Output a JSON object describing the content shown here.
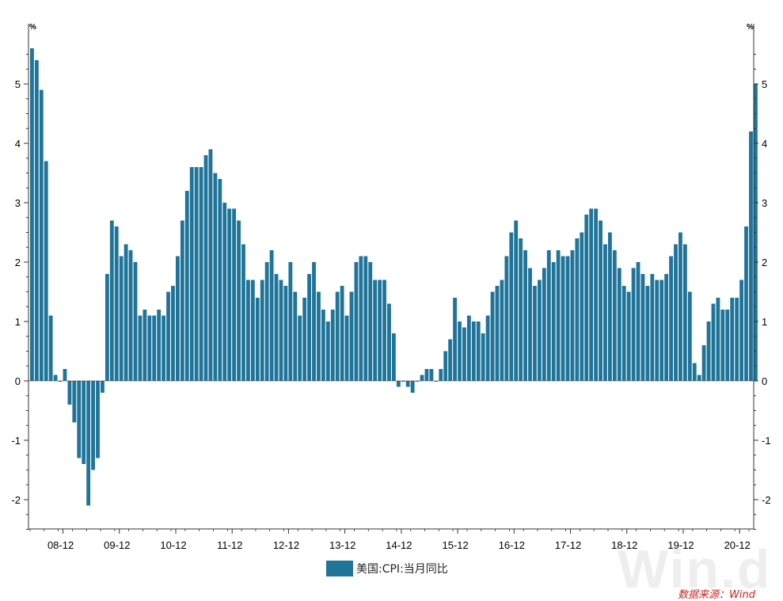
{
  "colors": {
    "bar": "#1f7499",
    "axis": "#333333"
  },
  "watermark": "Win.d",
  "source": "数据来源：Wind",
  "chart_data": {
    "type": "bar",
    "legend": "美国:CPI:当月同比",
    "unit_left": "%",
    "unit_right": "%",
    "ylim": [
      -2.5,
      5.75
    ],
    "yticks": [
      -2,
      -1,
      0,
      1,
      2,
      3,
      4,
      5
    ],
    "x_tick_labels": [
      "08-12",
      "09-12",
      "10-12",
      "11-12",
      "12-12",
      "13-12",
      "14-12",
      "15-12",
      "16-12",
      "17-12",
      "18-12",
      "19-12",
      "20-12"
    ],
    "start_month": "2008-06",
    "values": [
      5.6,
      5.4,
      4.9,
      3.7,
      1.1,
      0.1,
      0.0,
      0.2,
      -0.4,
      -0.7,
      -1.3,
      -1.4,
      -2.1,
      -1.5,
      -1.3,
      -0.2,
      1.8,
      2.7,
      2.6,
      2.1,
      2.3,
      2.2,
      2.0,
      1.1,
      1.2,
      1.1,
      1.1,
      1.2,
      1.1,
      1.5,
      1.6,
      2.1,
      2.7,
      3.2,
      3.6,
      3.6,
      3.6,
      3.8,
      3.9,
      3.5,
      3.4,
      3.0,
      2.9,
      2.9,
      2.7,
      2.3,
      1.7,
      1.7,
      1.4,
      1.7,
      2.0,
      2.2,
      1.8,
      1.7,
      1.6,
      2.0,
      1.5,
      1.1,
      1.4,
      1.8,
      2.0,
      1.5,
      1.2,
      1.0,
      1.2,
      1.5,
      1.6,
      1.1,
      1.5,
      2.0,
      2.1,
      2.1,
      2.0,
      1.7,
      1.7,
      1.7,
      1.3,
      0.8,
      -0.1,
      0.0,
      -0.1,
      -0.2,
      0.0,
      0.1,
      0.2,
      0.2,
      0.0,
      0.2,
      0.5,
      0.7,
      1.4,
      1.0,
      0.9,
      1.1,
      1.0,
      1.0,
      0.8,
      1.1,
      1.5,
      1.6,
      1.7,
      2.1,
      2.5,
      2.7,
      2.4,
      2.2,
      1.9,
      1.6,
      1.7,
      1.9,
      2.2,
      2.0,
      2.2,
      2.1,
      2.1,
      2.2,
      2.4,
      2.5,
      2.8,
      2.9,
      2.9,
      2.7,
      2.3,
      2.5,
      2.2,
      1.9,
      1.6,
      1.5,
      1.9,
      2.0,
      1.8,
      1.6,
      1.8,
      1.7,
      1.7,
      1.8,
      2.1,
      2.3,
      2.5,
      2.3,
      1.5,
      0.3,
      0.1,
      0.6,
      1.0,
      1.3,
      1.4,
      1.2,
      1.2,
      1.4,
      1.4,
      1.7,
      2.6,
      4.2,
      5.0
    ]
  }
}
